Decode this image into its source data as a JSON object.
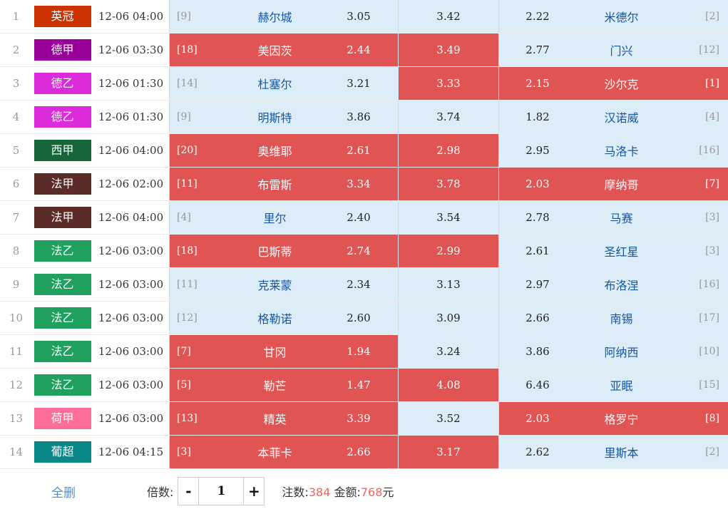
{
  "colors": {
    "selected_red": "#E05454",
    "cell_blue": "#DCEDF8",
    "team_blue": "#1456A8",
    "link_blue": "#4A90D2",
    "stake_red": "#F2635C"
  },
  "rows": [
    {
      "num": "1",
      "league": "英冠",
      "league_color": "#CC3300",
      "time": "12-06 04:00",
      "home_rank": "[9]",
      "home_team": "赫尔城",
      "home_odds": "3.05",
      "draw_odds": "3.42",
      "away_odds": "2.22",
      "away_team": "米德尔",
      "away_rank": "[2]",
      "sel_home": false,
      "sel_draw": false,
      "sel_away": false
    },
    {
      "num": "2",
      "league": "德甲",
      "league_color": "#990099",
      "time": "12-06 03:30",
      "home_rank": "[18]",
      "home_team": "美因茨",
      "home_odds": "2.44",
      "draw_odds": "3.49",
      "away_odds": "2.77",
      "away_team": "门兴",
      "away_rank": "[12]",
      "sel_home": true,
      "sel_draw": true,
      "sel_away": false
    },
    {
      "num": "3",
      "league": "德乙",
      "league_color": "#DB2BDB",
      "time": "12-06 01:30",
      "home_rank": "[14]",
      "home_team": "杜塞尔",
      "home_odds": "3.21",
      "draw_odds": "3.33",
      "away_odds": "2.15",
      "away_team": "沙尔克",
      "away_rank": "[1]",
      "sel_home": false,
      "sel_draw": true,
      "sel_away": true
    },
    {
      "num": "4",
      "league": "德乙",
      "league_color": "#DB2BDB",
      "time": "12-06 01:30",
      "home_rank": "[9]",
      "home_team": "明斯特",
      "home_odds": "3.86",
      "draw_odds": "3.74",
      "away_odds": "1.82",
      "away_team": "汉诺威",
      "away_rank": "[4]",
      "sel_home": false,
      "sel_draw": false,
      "sel_away": false
    },
    {
      "num": "5",
      "league": "西甲",
      "league_color": "#166539",
      "time": "12-06 04:00",
      "home_rank": "[20]",
      "home_team": "奥维耶",
      "home_odds": "2.61",
      "draw_odds": "2.98",
      "away_odds": "2.95",
      "away_team": "马洛卡",
      "away_rank": "[16]",
      "sel_home": true,
      "sel_draw": true,
      "sel_away": false
    },
    {
      "num": "6",
      "league": "法甲",
      "league_color": "#5B2B28",
      "time": "12-06 02:00",
      "home_rank": "[11]",
      "home_team": "布雷斯",
      "home_odds": "3.34",
      "draw_odds": "3.78",
      "away_odds": "2.03",
      "away_team": "摩纳哥",
      "away_rank": "[7]",
      "sel_home": true,
      "sel_draw": true,
      "sel_away": true
    },
    {
      "num": "7",
      "league": "法甲",
      "league_color": "#5B2B28",
      "time": "12-06 04:00",
      "home_rank": "[4]",
      "home_team": "里尔",
      "home_odds": "2.40",
      "draw_odds": "3.54",
      "away_odds": "2.78",
      "away_team": "马赛",
      "away_rank": "[3]",
      "sel_home": false,
      "sel_draw": false,
      "sel_away": false
    },
    {
      "num": "8",
      "league": "法乙",
      "league_color": "#1FA05F",
      "time": "12-06 03:00",
      "home_rank": "[18]",
      "home_team": "巴斯蒂",
      "home_odds": "2.74",
      "draw_odds": "2.99",
      "away_odds": "2.61",
      "away_team": "圣红星",
      "away_rank": "[3]",
      "sel_home": true,
      "sel_draw": true,
      "sel_away": false
    },
    {
      "num": "9",
      "league": "法乙",
      "league_color": "#1FA05F",
      "time": "12-06 03:00",
      "home_rank": "[11]",
      "home_team": "克莱蒙",
      "home_odds": "2.34",
      "draw_odds": "3.13",
      "away_odds": "2.97",
      "away_team": "布洛涅",
      "away_rank": "[16]",
      "sel_home": false,
      "sel_draw": false,
      "sel_away": false
    },
    {
      "num": "10",
      "league": "法乙",
      "league_color": "#1FA05F",
      "time": "12-06 03:00",
      "home_rank": "[12]",
      "home_team": "格勒诺",
      "home_odds": "2.60",
      "draw_odds": "3.09",
      "away_odds": "2.66",
      "away_team": "南锡",
      "away_rank": "[17]",
      "sel_home": false,
      "sel_draw": false,
      "sel_away": false
    },
    {
      "num": "11",
      "league": "法乙",
      "league_color": "#1FA05F",
      "time": "12-06 03:00",
      "home_rank": "[7]",
      "home_team": "甘冈",
      "home_odds": "1.94",
      "draw_odds": "3.24",
      "away_odds": "3.86",
      "away_team": "阿纳西",
      "away_rank": "[10]",
      "sel_home": true,
      "sel_draw": false,
      "sel_away": false
    },
    {
      "num": "12",
      "league": "法乙",
      "league_color": "#1FA05F",
      "time": "12-06 03:00",
      "home_rank": "[5]",
      "home_team": "勒芒",
      "home_odds": "1.47",
      "draw_odds": "4.08",
      "away_odds": "6.46",
      "away_team": "亚眠",
      "away_rank": "[15]",
      "sel_home": true,
      "sel_draw": true,
      "sel_away": false
    },
    {
      "num": "13",
      "league": "荷甲",
      "league_color": "#FF6E9B",
      "time": "12-06 03:00",
      "home_rank": "[13]",
      "home_team": "精英",
      "home_odds": "3.39",
      "draw_odds": "3.52",
      "away_odds": "2.03",
      "away_team": "格罗宁",
      "away_rank": "[8]",
      "sel_home": true,
      "sel_draw": false,
      "sel_away": true
    },
    {
      "num": "14",
      "league": "葡超",
      "league_color": "#0A8888",
      "time": "12-06 04:15",
      "home_rank": "[3]",
      "home_team": "本菲卡",
      "home_odds": "2.66",
      "draw_odds": "3.17",
      "away_odds": "2.62",
      "away_team": "里斯本",
      "away_rank": "[2]",
      "sel_home": true,
      "sel_draw": true,
      "sel_away": false
    }
  ],
  "footer": {
    "delete_all_label": "全删",
    "multiplier_label": "倍数:",
    "minus_label": "-",
    "multiplier_value": "1",
    "plus_label": "+",
    "bets_label": "注数:",
    "bets_value": "384",
    "amount_label": "金额:",
    "amount_value": "768",
    "amount_unit": "元"
  }
}
